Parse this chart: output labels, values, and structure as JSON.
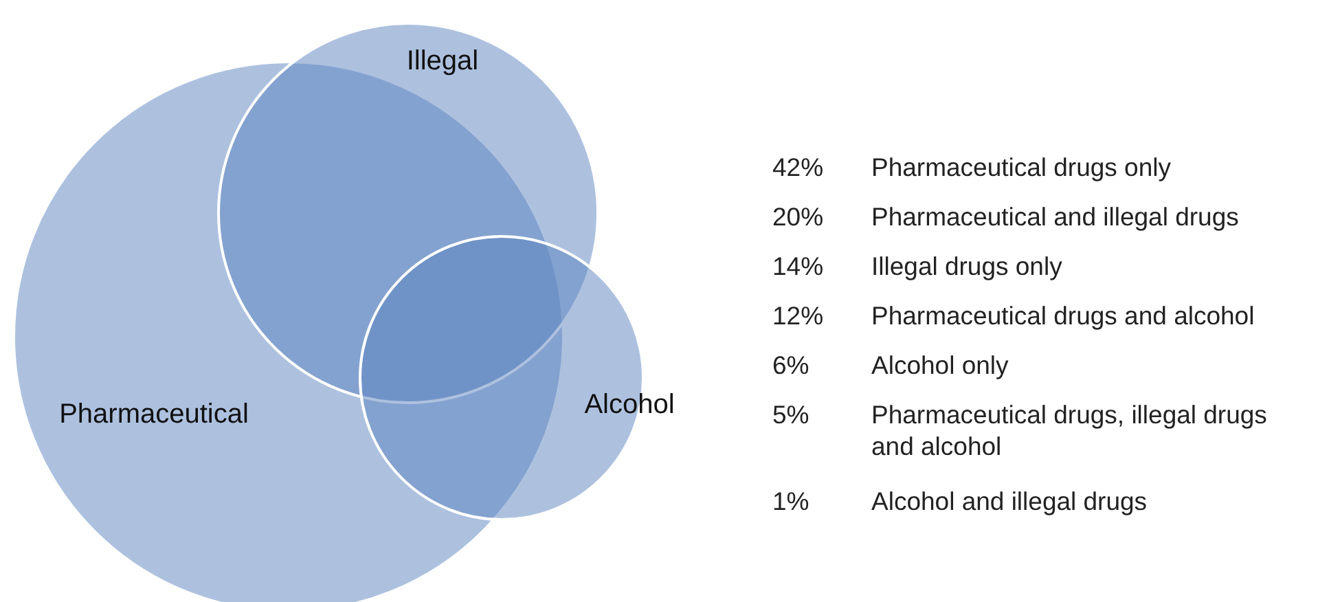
{
  "chart_data": {
    "type": "other",
    "color": "#5b84c0",
    "annotations": [
      "Pharmaceutical",
      "Illegal",
      "Alcohol"
    ],
    "categories": [
      "Pharmaceutical drugs only",
      "Pharmaceutical and illegal drugs",
      "Illegal drugs only",
      "Pharmaceutical drugs and alcohol",
      "Alcohol only",
      "Pharmaceutical drugs, illegal drugs and alcohol",
      "Alcohol and illegal drugs"
    ],
    "values": [
      42,
      20,
      14,
      12,
      6,
      5,
      1
    ],
    "value_labels": [
      "42%",
      "20%",
      "14%",
      "12%",
      "6%",
      "5%",
      "1%"
    ]
  }
}
